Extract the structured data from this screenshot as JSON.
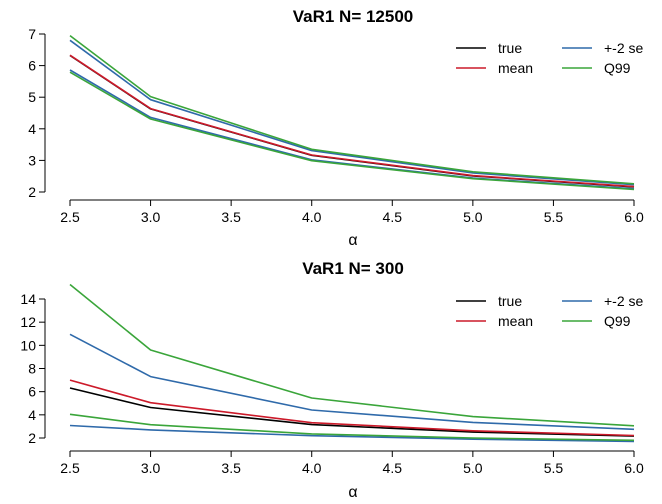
{
  "chart_data": [
    {
      "type": "line",
      "title": "VaR1 N= 12500",
      "xlabel": "α",
      "ylabel": "",
      "x": [
        2.5,
        3.0,
        4.0,
        5.0,
        6.0
      ],
      "xticks": [
        "2.5",
        "3.0",
        "3.5",
        "4.0",
        "4.5",
        "5.0",
        "5.5",
        "6.0"
      ],
      "yticks": [
        "2",
        "3",
        "4",
        "5",
        "6",
        "7"
      ],
      "xlim": [
        2.5,
        6.0
      ],
      "ylim": [
        2,
        7
      ],
      "grid": false,
      "legend_position": "top-right",
      "series": [
        {
          "name": "true",
          "color": "#000000",
          "values": [
            6.32,
            4.63,
            3.16,
            2.51,
            2.16
          ]
        },
        {
          "name": "mean",
          "color": "#cc1a2a",
          "values": [
            6.33,
            4.64,
            3.17,
            2.52,
            2.17
          ]
        },
        {
          "name": "+-2 se",
          "color": "#2f6aaa",
          "values": [
            6.8,
            4.92,
            3.31,
            2.6,
            2.23
          ]
        },
        {
          "name": "+-2 se",
          "color": "#2f6aaa",
          "values": [
            5.86,
            4.36,
            3.02,
            2.44,
            2.1
          ],
          "legend": false
        },
        {
          "name": "Q99",
          "color": "#3aa53a",
          "values": [
            6.95,
            5.02,
            3.35,
            2.64,
            2.26
          ]
        },
        {
          "name": "Q99",
          "color": "#3aa53a",
          "values": [
            5.79,
            4.31,
            2.99,
            2.42,
            2.08
          ],
          "legend": false
        }
      ]
    },
    {
      "type": "line",
      "title": "VaR1 N= 300",
      "xlabel": "α",
      "ylabel": "",
      "x": [
        2.5,
        3.0,
        4.0,
        5.0,
        6.0
      ],
      "xticks": [
        "2.5",
        "3.0",
        "3.5",
        "4.0",
        "4.5",
        "5.0",
        "5.5",
        "6.0"
      ],
      "yticks": [
        "2",
        "4",
        "6",
        "8",
        "10",
        "12",
        "14"
      ],
      "xlim": [
        2.5,
        6.0
      ],
      "ylim": [
        2,
        14
      ],
      "grid": false,
      "legend_position": "top-right",
      "series": [
        {
          "name": "true",
          "color": "#000000",
          "values": [
            6.32,
            4.63,
            3.16,
            2.51,
            2.16
          ]
        },
        {
          "name": "mean",
          "color": "#cc1a2a",
          "values": [
            7.0,
            5.05,
            3.32,
            2.62,
            2.22
          ]
        },
        {
          "name": "+-2 se",
          "color": "#2f6aaa",
          "values": [
            10.95,
            7.3,
            4.42,
            3.35,
            2.75
          ]
        },
        {
          "name": "+-2 se",
          "color": "#2f6aaa",
          "values": [
            3.08,
            2.7,
            2.2,
            1.9,
            1.7
          ],
          "legend": false
        },
        {
          "name": "Q99",
          "color": "#3aa53a",
          "values": [
            15.25,
            9.6,
            5.45,
            3.85,
            3.05
          ]
        },
        {
          "name": "Q99",
          "color": "#3aa53a",
          "values": [
            4.05,
            3.15,
            2.35,
            2.0,
            1.8
          ],
          "legend": false
        }
      ]
    }
  ]
}
